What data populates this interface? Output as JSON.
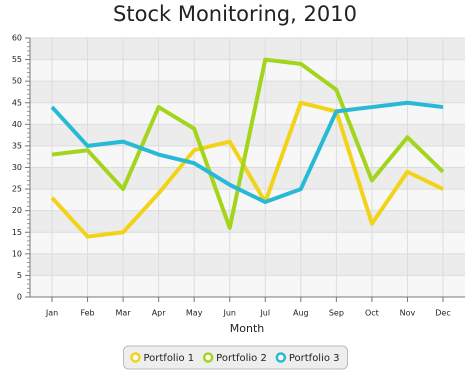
{
  "chart_data": {
    "type": "line",
    "title": "Stock Monitoring, 2010",
    "x_label": "Month",
    "categories": [
      "Jan",
      "Feb",
      "Mar",
      "Apr",
      "May",
      "Jun",
      "Jul",
      "Aug",
      "Sep",
      "Oct",
      "Nov",
      "Dec"
    ],
    "series": [
      {
        "name": "Portfolio 1",
        "color": "#f3d319",
        "values": [
          23,
          14,
          15,
          24,
          34,
          36,
          22,
          45,
          43,
          17,
          29,
          25
        ]
      },
      {
        "name": "Portfolio 2",
        "color": "#a2d51b",
        "values": [
          33,
          34,
          25,
          44,
          39,
          16,
          55,
          54,
          48,
          27,
          37,
          29
        ]
      },
      {
        "name": "Portfolio 3",
        "color": "#28b9d6",
        "values": [
          44,
          35,
          36,
          33,
          31,
          26,
          22,
          25,
          43,
          44,
          45,
          44
        ]
      }
    ],
    "ylim": [
      0,
      60
    ],
    "yticks": [
      0,
      5,
      10,
      15,
      20,
      25,
      30,
      35,
      40,
      45,
      50,
      55,
      60
    ],
    "grid": true,
    "legend": "bottom"
  }
}
